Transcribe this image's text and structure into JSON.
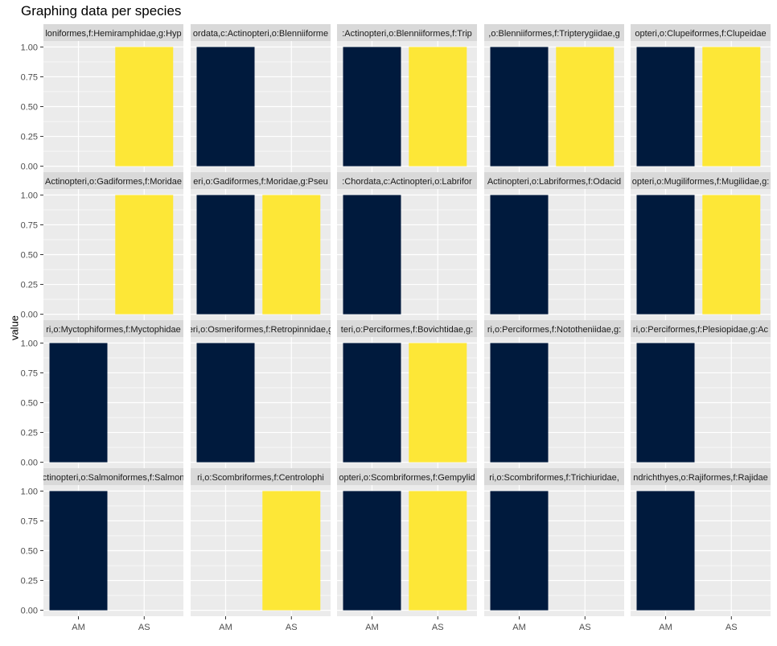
{
  "chart_data": {
    "type": "bar",
    "title": "Graphing data per species",
    "ylabel": "value",
    "xlabel": "",
    "categories": [
      "AM",
      "AS"
    ],
    "ylim": [
      0,
      1
    ],
    "y_ticks": [
      "0.00",
      "0.25",
      "0.50",
      "0.75",
      "1.00"
    ],
    "colors": {
      "AM": "#001a3d",
      "AS": "#fde737",
      "panel_bg": "#ebebeb",
      "strip_bg": "#d9d9d9",
      "grid": "#ffffff"
    },
    "facets": [
      {
        "strip": "loniformes,f:Hemiramphidae,g:Hyp",
        "values": [
          0,
          1
        ]
      },
      {
        "strip": "ordata,c:Actinopteri,o:Blenniiforme",
        "values": [
          1,
          0
        ]
      },
      {
        "strip": ":Actinopteri,o:Blenniiformes,f:Trip",
        "values": [
          1,
          1
        ]
      },
      {
        "strip": ",o:Blenniiformes,f:Tripterygiidae,g",
        "values": [
          1,
          1
        ]
      },
      {
        "strip": "opteri,o:Clupeiformes,f:Clupeidae",
        "values": [
          1,
          1
        ]
      },
      {
        "strip": "Actinopteri,o:Gadiformes,f:Moridae",
        "values": [
          0,
          1
        ]
      },
      {
        "strip": "eri,o:Gadiformes,f:Moridae,g:Pseu",
        "values": [
          1,
          1
        ]
      },
      {
        "strip": ":Chordata,c:Actinopteri,o:Labrifor",
        "values": [
          1,
          0
        ]
      },
      {
        "strip": "Actinopteri,o:Labriformes,f:Odacid",
        "values": [
          1,
          0
        ]
      },
      {
        "strip": "opteri,o:Mugiliformes,f:Mugilidae,g:",
        "values": [
          1,
          1
        ]
      },
      {
        "strip": "ri,o:Myctophiformes,f:Myctophidae",
        "values": [
          1,
          0
        ]
      },
      {
        "strip": "eri,o:Osmeriformes,f:Retropinnidae,g",
        "values": [
          1,
          0
        ]
      },
      {
        "strip": "teri,o:Perciformes,f:Bovichtidae,g:",
        "values": [
          1,
          1
        ]
      },
      {
        "strip": "ri,o:Perciformes,f:Nototheniidae,g:",
        "values": [
          1,
          0
        ]
      },
      {
        "strip": "ri,o:Perciformes,f:Plesiopidae,g:Ac",
        "values": [
          1,
          0
        ]
      },
      {
        "strip": "ctinopteri,o:Salmoniformes,f:Salmon",
        "values": [
          1,
          0
        ]
      },
      {
        "strip": "ri,o:Scombriformes,f:Centrolophi",
        "values": [
          0,
          1
        ]
      },
      {
        "strip": "opteri,o:Scombriformes,f:Gempylid",
        "values": [
          1,
          1
        ]
      },
      {
        "strip": "ri,o:Scombriformes,f:Trichiuridae,",
        "values": [
          1,
          0
        ]
      },
      {
        "strip": "ndrichthyes,o:Rajiformes,f:Rajidae",
        "values": [
          1,
          0
        ]
      }
    ]
  }
}
